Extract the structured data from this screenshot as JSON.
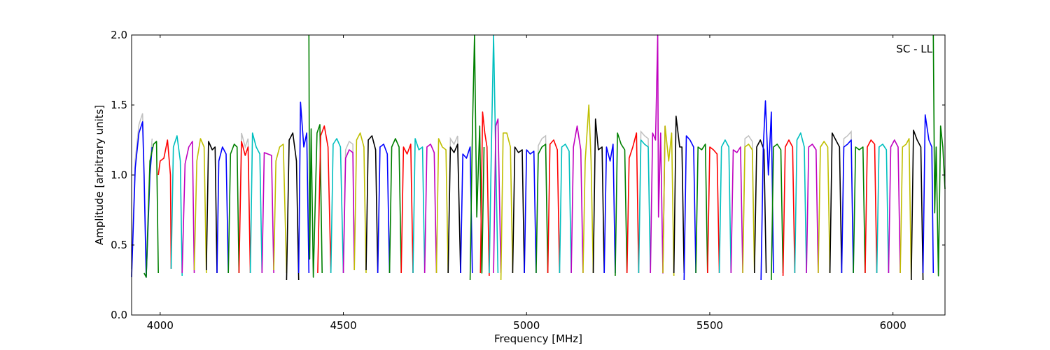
{
  "chart_data": {
    "type": "line",
    "title": "",
    "annotation": "SC - LL",
    "xlabel": "Frequency [MHz]",
    "ylabel": "Amplitude [arbitrary units]",
    "xlim": [
      3922,
      6142
    ],
    "ylim": [
      0.0,
      2.0
    ],
    "xticks": [
      4000,
      4500,
      5000,
      5500,
      6000
    ],
    "yticks": [
      0.0,
      0.5,
      1.0,
      1.5,
      2.0
    ],
    "xtick_labels": [
      "4000",
      "4500",
      "5000",
      "5500",
      "6000"
    ],
    "ytick_labels": [
      "0.0",
      "0.5",
      "1.0",
      "1.5",
      "2.0"
    ],
    "grid": false,
    "legend": "none",
    "line_colors": [
      "#0000ff",
      "#008000",
      "#ff0000",
      "#00bfbf",
      "#bf00bf",
      "#bfbf00",
      "#000000"
    ],
    "background_color": "#c0c0c0",
    "series": [
      {
        "x": [
          3922,
          3932,
          3942,
          3952,
          3956,
          3962,
          3972,
          3978
        ],
        "y": [
          0.27,
          1.05,
          1.3,
          1.38,
          1.0,
          0.27,
          1.0,
          1.2
        ]
      },
      {
        "x": [
          3956,
          3962,
          3972,
          3982,
          3990,
          3995
        ],
        "y": [
          0.3,
          0.27,
          1.1,
          1.22,
          1.24,
          0.3
        ]
      },
      {
        "x": [
          3995,
          4000,
          4010,
          4020,
          4028,
          4030
        ],
        "y": [
          1.0,
          1.1,
          1.12,
          1.25,
          1.0,
          0.33
        ]
      },
      {
        "x": [
          4030,
          4036,
          4046,
          4055,
          4060
        ],
        "y": [
          0.33,
          1.2,
          1.28,
          1.1,
          0.28
        ]
      },
      {
        "x": [
          4060,
          4068,
          4078,
          4088,
          4093
        ],
        "y": [
          0.3,
          1.08,
          1.2,
          1.24,
          0.3
        ]
      },
      {
        "x": [
          4093,
          4100,
          4110,
          4120,
          4126
        ],
        "y": [
          0.32,
          1.1,
          1.26,
          1.2,
          0.3
        ]
      },
      {
        "x": [
          4126,
          4132,
          4142,
          4150,
          4155
        ],
        "y": [
          0.32,
          1.24,
          1.18,
          1.2,
          0.3
        ]
      },
      {
        "x": [
          4155,
          4160,
          4170,
          4180,
          4186
        ],
        "y": [
          0.3,
          1.1,
          1.2,
          1.15,
          0.3
        ]
      },
      {
        "x": [
          4186,
          4192,
          4202,
          4210,
          4215
        ],
        "y": [
          0.3,
          1.15,
          1.22,
          1.2,
          0.3
        ]
      },
      {
        "x": [
          4215,
          4222,
          4232,
          4240,
          4246
        ],
        "y": [
          0.3,
          1.24,
          1.14,
          1.2,
          0.3
        ]
      },
      {
        "x": [
          4246,
          4252,
          4262,
          4272,
          4278
        ],
        "y": [
          0.3,
          1.3,
          1.2,
          1.15,
          0.3
        ]
      },
      {
        "x": [
          4278,
          4284,
          4294,
          4304,
          4310
        ],
        "y": [
          0.3,
          1.16,
          1.15,
          1.14,
          0.3
        ]
      },
      {
        "x": [
          4310,
          4316,
          4326,
          4336,
          4345
        ],
        "y": [
          0.32,
          1.1,
          1.2,
          1.22,
          0.3
        ]
      },
      {
        "x": [
          4345,
          4352,
          4362,
          4372,
          4378
        ],
        "y": [
          0.25,
          1.25,
          1.3,
          1.1,
          0.25
        ]
      },
      {
        "x": [
          4378,
          4383,
          4392,
          4400,
          4406
        ],
        "y": [
          0.3,
          1.52,
          1.2,
          1.3,
          0.3
        ]
      },
      {
        "x": [
          4406,
          4408,
          4412,
          4418,
          4428,
          4436,
          4442
        ],
        "y": [
          2.0,
          0.4,
          1.33,
          0.27,
          1.3,
          1.36,
          0.3
        ]
      },
      {
        "x": [
          4430,
          4438,
          4448,
          4458,
          4466
        ],
        "y": [
          0.3,
          1.28,
          1.35,
          1.2,
          0.3
        ]
      },
      {
        "x": [
          4466,
          4472,
          4482,
          4492,
          4500
        ],
        "y": [
          0.3,
          1.22,
          1.26,
          1.2,
          0.3
        ]
      },
      {
        "x": [
          4500,
          4506,
          4516,
          4526,
          4530
        ],
        "y": [
          0.3,
          1.12,
          1.18,
          1.16,
          0.32
        ]
      },
      {
        "x": [
          4530,
          4536,
          4546,
          4556,
          4562
        ],
        "y": [
          0.32,
          1.25,
          1.3,
          1.2,
          0.3
        ]
      },
      {
        "x": [
          4562,
          4568,
          4578,
          4588,
          4594
        ],
        "y": [
          0.32,
          1.25,
          1.28,
          1.18,
          0.3
        ]
      },
      {
        "x": [
          4594,
          4600,
          4610,
          4620,
          4626
        ],
        "y": [
          0.3,
          1.2,
          1.22,
          1.15,
          0.3
        ]
      },
      {
        "x": [
          4626,
          4632,
          4642,
          4652,
          4658
        ],
        "y": [
          0.3,
          1.2,
          1.26,
          1.2,
          0.3
        ]
      },
      {
        "x": [
          4658,
          4664,
          4674,
          4684,
          4690
        ],
        "y": [
          0.3,
          1.2,
          1.15,
          1.22,
          0.3
        ]
      },
      {
        "x": [
          4690,
          4696,
          4706,
          4716,
          4722
        ],
        "y": [
          0.3,
          1.26,
          1.18,
          1.2,
          0.3
        ]
      },
      {
        "x": [
          4722,
          4728,
          4738,
          4748,
          4754
        ],
        "y": [
          0.3,
          1.2,
          1.22,
          1.16,
          0.3
        ]
      },
      {
        "x": [
          4754,
          4760,
          4770,
          4780,
          4786
        ],
        "y": [
          0.3,
          1.26,
          1.2,
          1.18,
          0.3
        ]
      },
      {
        "x": [
          4786,
          4792,
          4802,
          4812,
          4820
        ],
        "y": [
          0.3,
          1.2,
          1.16,
          1.22,
          0.3
        ]
      },
      {
        "x": [
          4820,
          4826,
          4836,
          4846,
          4852
        ],
        "y": [
          0.3,
          1.15,
          1.12,
          1.2,
          0.3
        ]
      },
      {
        "x": [
          4846,
          4852,
          4858,
          4864,
          4872,
          4878,
          4884
        ],
        "y": [
          0.25,
          1.3,
          2.0,
          0.7,
          1.35,
          0.3,
          1.2
        ]
      },
      {
        "x": [
          4874,
          4880,
          4886,
          4892,
          4898
        ],
        "y": [
          0.3,
          1.45,
          1.3,
          1.2,
          0.28
        ]
      },
      {
        "x": [
          4898,
          4904,
          4910,
          4916,
          4922
        ],
        "y": [
          0.3,
          1.2,
          2.0,
          1.1,
          0.3
        ]
      },
      {
        "x": [
          4910,
          4916,
          4922,
          4930
        ],
        "y": [
          0.3,
          1.35,
          1.4,
          0.3
        ]
      },
      {
        "x": [
          4930,
          4936,
          4946,
          4956,
          4962
        ],
        "y": [
          0.25,
          1.3,
          1.3,
          1.2,
          0.3
        ]
      },
      {
        "x": [
          4962,
          4968,
          4978,
          4988,
          4994
        ],
        "y": [
          0.3,
          1.2,
          1.16,
          1.18,
          0.3
        ]
      },
      {
        "x": [
          4994,
          5000,
          5010,
          5020,
          5026
        ],
        "y": [
          0.3,
          1.18,
          1.15,
          1.17,
          0.3
        ]
      },
      {
        "x": [
          5026,
          5032,
          5042,
          5052,
          5058
        ],
        "y": [
          0.3,
          1.15,
          1.2,
          1.22,
          0.3
        ]
      },
      {
        "x": [
          5058,
          5064,
          5074,
          5084,
          5090
        ],
        "y": [
          0.3,
          1.22,
          1.25,
          1.18,
          0.3
        ]
      },
      {
        "x": [
          5090,
          5096,
          5106,
          5116,
          5122
        ],
        "y": [
          0.3,
          1.2,
          1.22,
          1.17,
          0.3
        ]
      },
      {
        "x": [
          5122,
          5128,
          5138,
          5148,
          5154
        ],
        "y": [
          0.3,
          1.2,
          1.35,
          1.18,
          0.3
        ]
      },
      {
        "x": [
          5154,
          5160,
          5170,
          5176,
          5182
        ],
        "y": [
          0.3,
          1.1,
          1.5,
          1.1,
          0.3
        ]
      },
      {
        "x": [
          5182,
          5188,
          5196,
          5206,
          5212
        ],
        "y": [
          0.3,
          1.4,
          1.18,
          1.2,
          0.3
        ]
      },
      {
        "x": [
          5212,
          5218,
          5228,
          5236,
          5242
        ],
        "y": [
          0.3,
          1.2,
          1.1,
          1.22,
          0.3
        ]
      },
      {
        "x": [
          5242,
          5248,
          5258,
          5268,
          5274
        ],
        "y": [
          0.28,
          1.3,
          1.22,
          1.18,
          0.3
        ]
      },
      {
        "x": [
          5274,
          5280,
          5290,
          5300,
          5306
        ],
        "y": [
          0.3,
          1.12,
          1.2,
          1.3,
          0.3
        ]
      },
      {
        "x": [
          5306,
          5312,
          5322,
          5332,
          5338
        ],
        "y": [
          0.3,
          1.25,
          1.22,
          1.2,
          0.3
        ]
      },
      {
        "x": [
          5338,
          5344,
          5352,
          5358,
          5360,
          5366,
          5372,
          5378
        ],
        "y": [
          0.3,
          1.3,
          1.25,
          2.0,
          0.7,
          1.3,
          0.3,
          1.35
        ]
      },
      {
        "x": [
          5372,
          5378,
          5388,
          5396,
          5402
        ],
        "y": [
          0.3,
          1.35,
          1.1,
          1.3,
          0.28
        ]
      },
      {
        "x": [
          5402,
          5408,
          5418,
          5424,
          5430
        ],
        "y": [
          0.3,
          1.42,
          1.2,
          1.2,
          0.3
        ]
      },
      {
        "x": [
          5430,
          5436,
          5446,
          5456,
          5462
        ],
        "y": [
          0.25,
          1.28,
          1.25,
          1.2,
          0.3
        ]
      },
      {
        "x": [
          5462,
          5468,
          5478,
          5488,
          5494
        ],
        "y": [
          0.3,
          1.2,
          1.18,
          1.22,
          0.3
        ]
      },
      {
        "x": [
          5494,
          5500,
          5510,
          5520,
          5526
        ],
        "y": [
          0.3,
          1.2,
          1.18,
          1.15,
          0.3
        ]
      },
      {
        "x": [
          5526,
          5532,
          5542,
          5552,
          5558
        ],
        "y": [
          0.3,
          1.2,
          1.25,
          1.2,
          0.3
        ]
      },
      {
        "x": [
          5558,
          5564,
          5574,
          5584,
          5590
        ],
        "y": [
          0.3,
          1.18,
          1.16,
          1.2,
          0.3
        ]
      },
      {
        "x": [
          5590,
          5596,
          5606,
          5616,
          5622
        ],
        "y": [
          0.3,
          1.2,
          1.22,
          1.18,
          0.3
        ]
      },
      {
        "x": [
          5622,
          5628,
          5638,
          5648,
          5654
        ],
        "y": [
          0.3,
          1.2,
          1.25,
          1.18,
          0.3
        ]
      },
      {
        "x": [
          5640,
          5646,
          5652,
          5660,
          5668,
          5674
        ],
        "y": [
          0.25,
          1.2,
          1.53,
          1.0,
          1.45,
          0.3
        ]
      },
      {
        "x": [
          5668,
          5674,
          5684,
          5694,
          5700
        ],
        "y": [
          0.25,
          1.2,
          1.22,
          1.18,
          0.3
        ]
      },
      {
        "x": [
          5700,
          5706,
          5716,
          5726,
          5732
        ],
        "y": [
          0.28,
          1.2,
          1.25,
          1.2,
          0.3
        ]
      },
      {
        "x": [
          5732,
          5738,
          5748,
          5758,
          5764
        ],
        "y": [
          0.3,
          1.25,
          1.3,
          1.2,
          0.3
        ]
      },
      {
        "x": [
          5764,
          5770,
          5780,
          5790,
          5796
        ],
        "y": [
          0.3,
          1.2,
          1.22,
          1.18,
          0.3
        ]
      },
      {
        "x": [
          5796,
          5802,
          5812,
          5822,
          5828
        ],
        "y": [
          0.3,
          1.2,
          1.24,
          1.2,
          0.3
        ]
      },
      {
        "x": [
          5828,
          5834,
          5844,
          5854,
          5860
        ],
        "y": [
          0.3,
          1.3,
          1.25,
          1.2,
          0.3
        ]
      },
      {
        "x": [
          5860,
          5866,
          5876,
          5886,
          5892
        ],
        "y": [
          0.3,
          1.2,
          1.22,
          1.25,
          0.3
        ]
      },
      {
        "x": [
          5892,
          5898,
          5908,
          5918,
          5924
        ],
        "y": [
          0.3,
          1.2,
          1.18,
          1.2,
          0.3
        ]
      },
      {
        "x": [
          5924,
          5930,
          5940,
          5950,
          5956
        ],
        "y": [
          0.3,
          1.2,
          1.25,
          1.22,
          0.3
        ]
      },
      {
        "x": [
          5956,
          5962,
          5972,
          5982,
          5988
        ],
        "y": [
          0.3,
          1.2,
          1.22,
          1.18,
          0.3
        ]
      },
      {
        "x": [
          5988,
          5994,
          6004,
          6014,
          6020
        ],
        "y": [
          0.3,
          1.2,
          1.25,
          1.2,
          0.3
        ]
      },
      {
        "x": [
          6020,
          6026,
          6036,
          6044,
          6050
        ],
        "y": [
          0.3,
          1.2,
          1.22,
          1.26,
          0.25
        ]
      },
      {
        "x": [
          6050,
          6056,
          6066,
          6076,
          6082
        ],
        "y": [
          0.25,
          1.32,
          1.25,
          1.2,
          0.25
        ]
      },
      {
        "x": [
          6082,
          6088,
          6098,
          6106,
          6110
        ],
        "y": [
          0.3,
          1.43,
          1.25,
          1.2,
          0.3
        ]
      },
      {
        "x": [
          6110,
          6114,
          6118,
          6124,
          6130,
          6136,
          6142
        ],
        "y": [
          2.0,
          0.73,
          1.2,
          0.28,
          1.35,
          1.2,
          0.9
        ]
      }
    ]
  }
}
